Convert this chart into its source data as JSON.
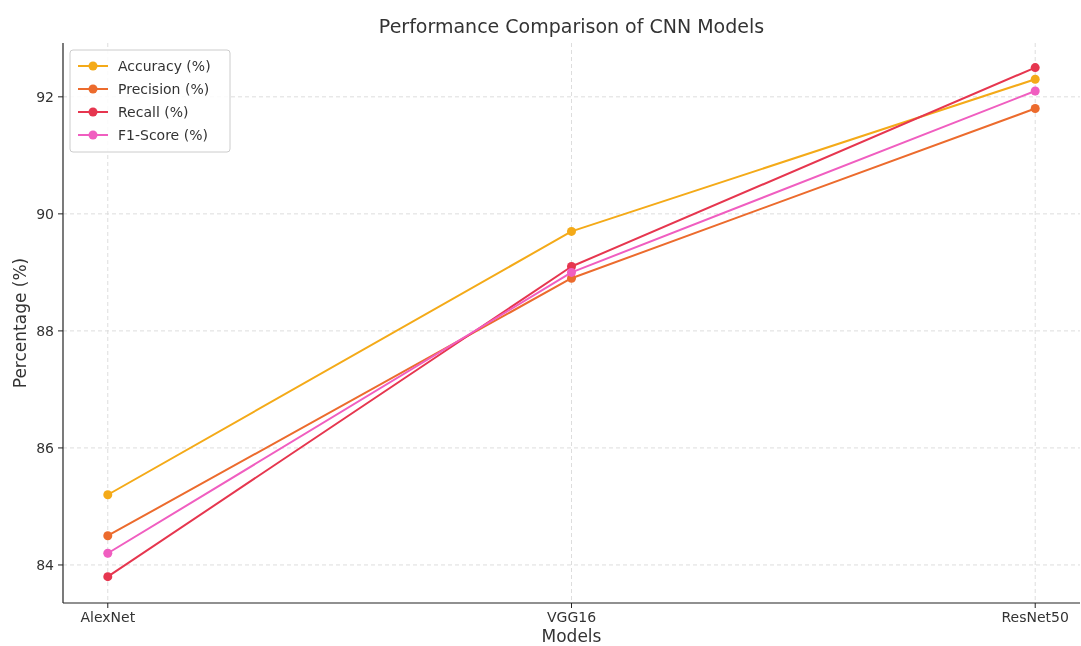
{
  "chart_data": {
    "type": "line",
    "title": "Performance Comparison of CNN Models",
    "xlabel": "Models",
    "ylabel": "Percentage (%)",
    "categories": [
      "AlexNet",
      "VGG16",
      "ResNet50"
    ],
    "series": [
      {
        "name": "Accuracy (%)",
        "color": "#f4aa18",
        "values": [
          85.2,
          89.7,
          92.3
        ]
      },
      {
        "name": "Precision (%)",
        "color": "#ec6b2d",
        "values": [
          84.5,
          88.9,
          91.8
        ]
      },
      {
        "name": "Recall (%)",
        "color": "#e6364f",
        "values": [
          83.8,
          89.1,
          92.5
        ]
      },
      {
        "name": "F1-Score (%)",
        "color": "#f05ec0",
        "values": [
          84.2,
          89.0,
          92.1
        ]
      }
    ],
    "ylim": [
      83.35,
      92.92
    ],
    "yticks": [
      84,
      86,
      88,
      90,
      92
    ],
    "grid": true,
    "legend": "top left",
    "marker": "circle",
    "line_style": "solid"
  }
}
